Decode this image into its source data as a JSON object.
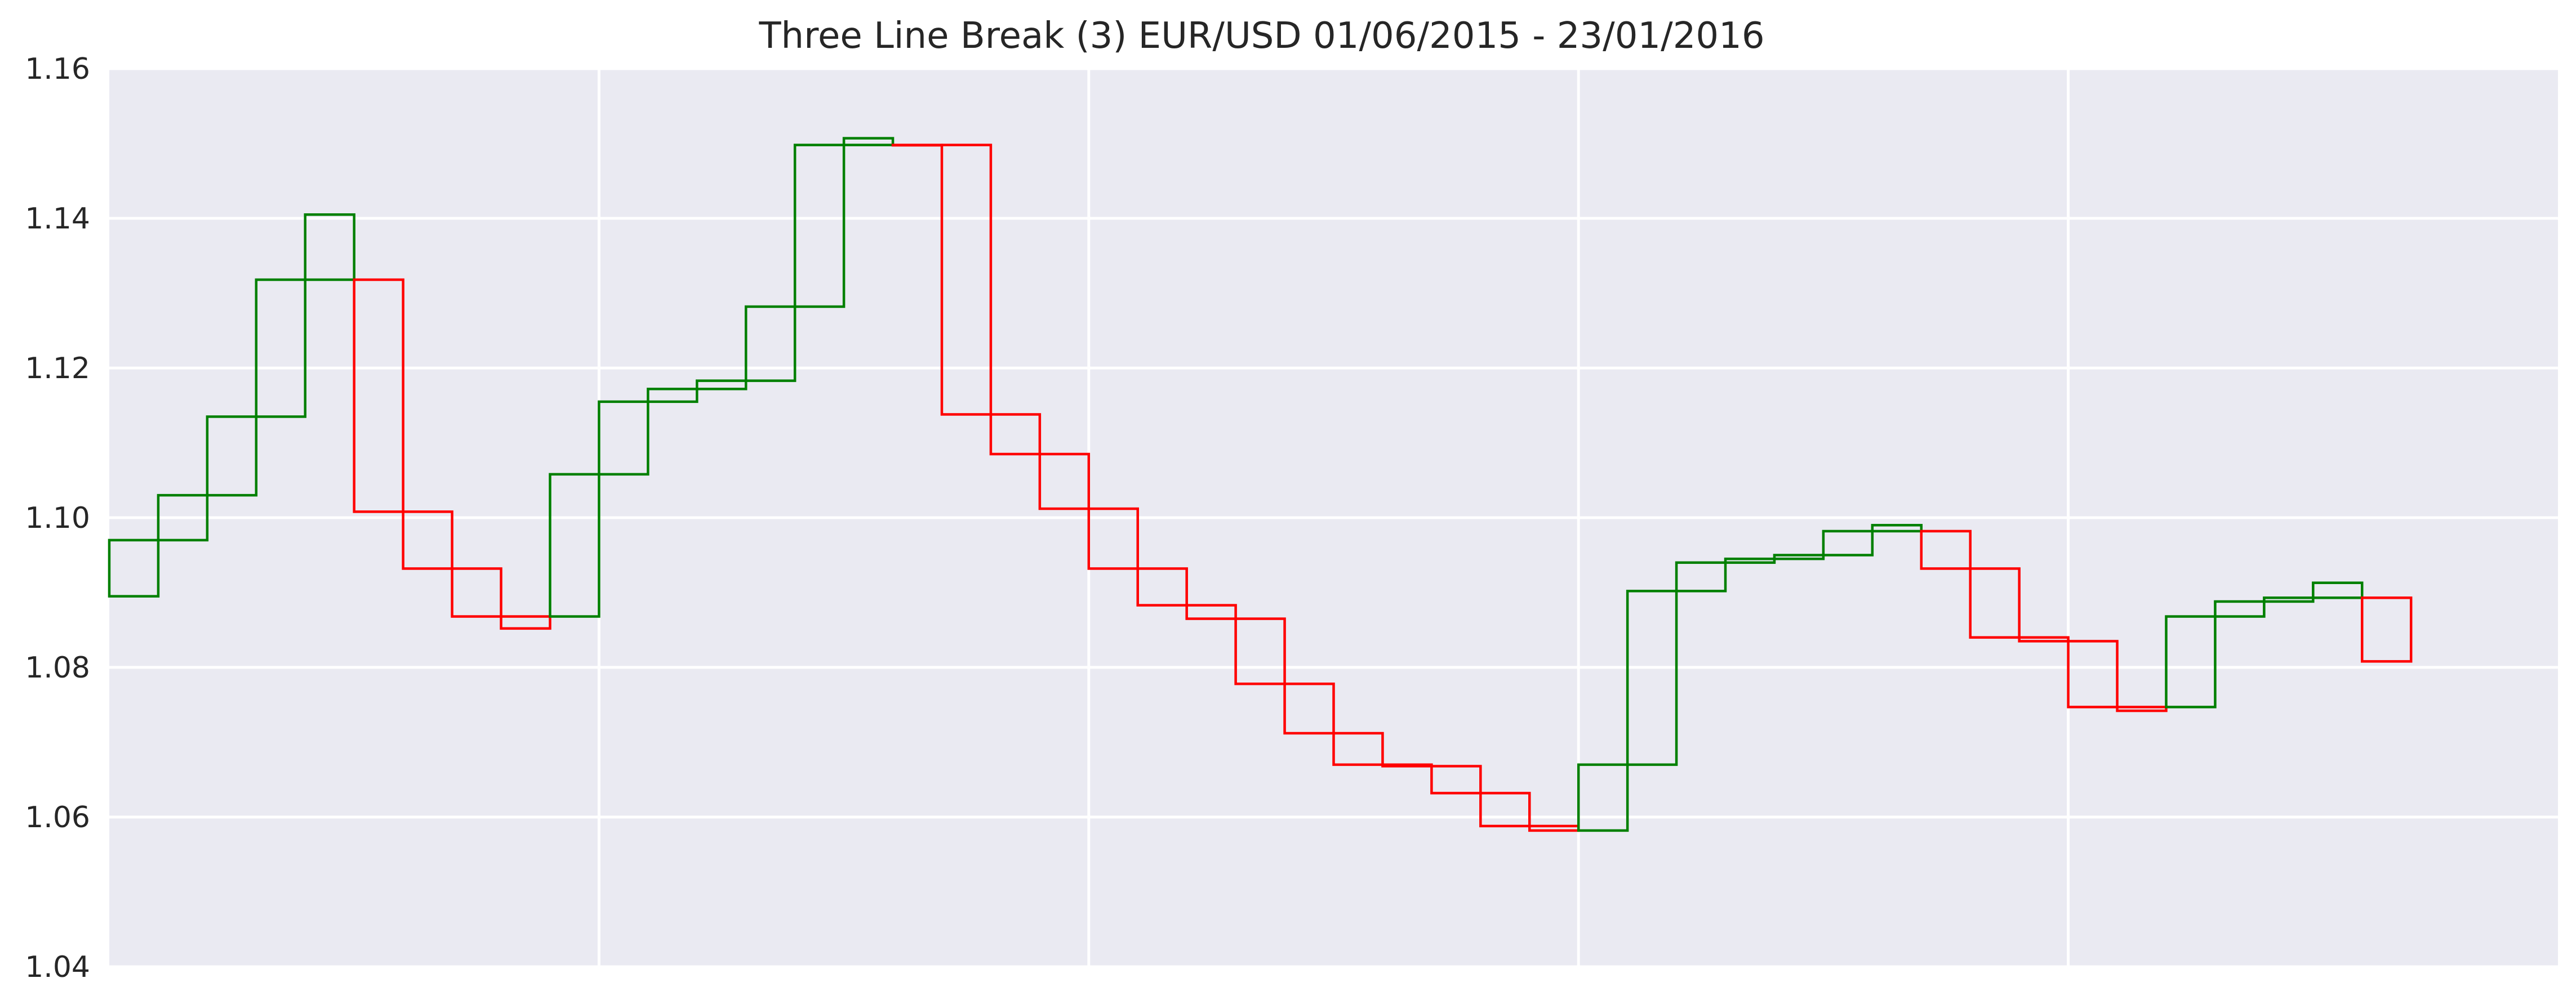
{
  "chart_data": {
    "type": "three-line-break",
    "title": "Three Line Break (3)     EUR/USD     01/06/2015 - 23/01/2016",
    "ylim": [
      1.04,
      1.16
    ],
    "yticks": [
      "1.04",
      "1.06",
      "1.08",
      "1.10",
      "1.12",
      "1.14",
      "1.16"
    ],
    "ytick_values": [
      1.04,
      1.06,
      1.08,
      1.1,
      1.12,
      1.14,
      1.16
    ],
    "x_gridlines": [
      10,
      20,
      30,
      40
    ],
    "xlim": [
      0,
      50
    ],
    "grid": true,
    "colors": {
      "up": "#008000",
      "down": "#ff0000",
      "background": "#eaeaf2",
      "grid": "#ffffff"
    },
    "bricks": [
      {
        "dir": "up",
        "low": 1.0895,
        "high": 1.097
      },
      {
        "dir": "up",
        "low": 1.097,
        "high": 1.103
      },
      {
        "dir": "up",
        "low": 1.103,
        "high": 1.1135
      },
      {
        "dir": "up",
        "low": 1.1135,
        "high": 1.1318
      },
      {
        "dir": "up",
        "low": 1.1318,
        "high": 1.1405
      },
      {
        "dir": "down",
        "low": 1.1008,
        "high": 1.1318
      },
      {
        "dir": "down",
        "low": 1.0932,
        "high": 1.1008
      },
      {
        "dir": "down",
        "low": 1.0868,
        "high": 1.0932
      },
      {
        "dir": "down",
        "low": 1.0852,
        "high": 1.0868
      },
      {
        "dir": "up",
        "low": 1.0868,
        "high": 1.1058
      },
      {
        "dir": "up",
        "low": 1.1058,
        "high": 1.1155
      },
      {
        "dir": "up",
        "low": 1.1155,
        "high": 1.1172
      },
      {
        "dir": "up",
        "low": 1.1172,
        "high": 1.1183
      },
      {
        "dir": "up",
        "low": 1.1183,
        "high": 1.1282
      },
      {
        "dir": "up",
        "low": 1.1282,
        "high": 1.1498
      },
      {
        "dir": "up",
        "low": 1.1498,
        "high": 1.1507
      },
      {
        "dir": "down",
        "low": 1.1498,
        "high": 1.1498
      },
      {
        "dir": "down",
        "low": 1.1138,
        "high": 1.1498
      },
      {
        "dir": "down",
        "low": 1.1085,
        "high": 1.1138
      },
      {
        "dir": "down",
        "low": 1.1012,
        "high": 1.1085
      },
      {
        "dir": "down",
        "low": 1.0932,
        "high": 1.1012
      },
      {
        "dir": "down",
        "low": 1.0883,
        "high": 1.0932
      },
      {
        "dir": "down",
        "low": 1.0865,
        "high": 1.0883
      },
      {
        "dir": "down",
        "low": 1.0778,
        "high": 1.0865
      },
      {
        "dir": "down",
        "low": 1.0712,
        "high": 1.0778
      },
      {
        "dir": "down",
        "low": 1.067,
        "high": 1.0712
      },
      {
        "dir": "down",
        "low": 1.0668,
        "high": 1.067
      },
      {
        "dir": "down",
        "low": 1.0632,
        "high": 1.0668
      },
      {
        "dir": "down",
        "low": 1.0588,
        "high": 1.0632
      },
      {
        "dir": "down",
        "low": 1.0582,
        "high": 1.0588
      },
      {
        "dir": "up",
        "low": 1.0582,
        "high": 1.067
      },
      {
        "dir": "up",
        "low": 1.067,
        "high": 1.0902
      },
      {
        "dir": "up",
        "low": 1.0902,
        "high": 1.094
      },
      {
        "dir": "up",
        "low": 1.094,
        "high": 1.0945
      },
      {
        "dir": "up",
        "low": 1.0945,
        "high": 1.095
      },
      {
        "dir": "up",
        "low": 1.095,
        "high": 1.0982
      },
      {
        "dir": "up",
        "low": 1.0982,
        "high": 1.099
      },
      {
        "dir": "down",
        "low": 1.0932,
        "high": 1.0982
      },
      {
        "dir": "down",
        "low": 1.084,
        "high": 1.0932
      },
      {
        "dir": "down",
        "low": 1.0835,
        "high": 1.084
      },
      {
        "dir": "down",
        "low": 1.0747,
        "high": 1.0835
      },
      {
        "dir": "down",
        "low": 1.0742,
        "high": 1.0747
      },
      {
        "dir": "up",
        "low": 1.0747,
        "high": 1.0868
      },
      {
        "dir": "up",
        "low": 1.0868,
        "high": 1.0888
      },
      {
        "dir": "up",
        "low": 1.0888,
        "high": 1.0893
      },
      {
        "dir": "up",
        "low": 1.0893,
        "high": 1.0913
      },
      {
        "dir": "down",
        "low": 1.0808,
        "high": 1.0893
      }
    ]
  }
}
